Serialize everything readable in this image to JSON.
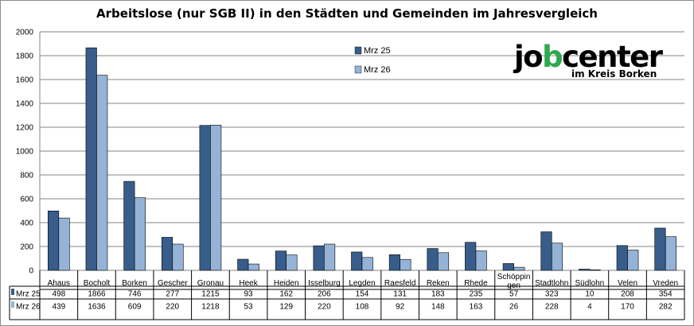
{
  "chart_data": {
    "type": "bar",
    "title": "Arbeitslose (nur SGB II) in den Städten und Gemeinden im Jahresvergleich",
    "categories": [
      "Ahaus",
      "Bocholt",
      "Borken",
      "Gescher",
      "Gronau",
      "Heek",
      "Heiden",
      "Isselburg",
      "Legden",
      "Raesfeld",
      "Reken",
      "Rhede",
      "Schöppin gen",
      "Stadtlohn",
      "Südlohn",
      "Velen",
      "Vreden"
    ],
    "series": [
      {
        "name": "Mrz 25",
        "color": "#385d8a",
        "values": [
          498,
          1866,
          746,
          277,
          1215,
          93,
          162,
          206,
          154,
          131,
          183,
          235,
          57,
          323,
          10,
          208,
          354
        ]
      },
      {
        "name": "Mrz 26",
        "color": "#95b3d7",
        "values": [
          439,
          1636,
          609,
          220,
          1218,
          53,
          129,
          220,
          108,
          92,
          148,
          163,
          26,
          228,
          4,
          170,
          282
        ]
      }
    ],
    "ylim": [
      0,
      2000
    ],
    "yticks": [
      0,
      200,
      400,
      600,
      800,
      1000,
      1200,
      1400,
      1600,
      1800,
      2000
    ],
    "grid": true,
    "legend": "top-center",
    "data_table": true
  },
  "logo": {
    "wordmark": "jobcenter",
    "subline": "im Kreis Borken",
    "accent": "#2fa84f"
  }
}
